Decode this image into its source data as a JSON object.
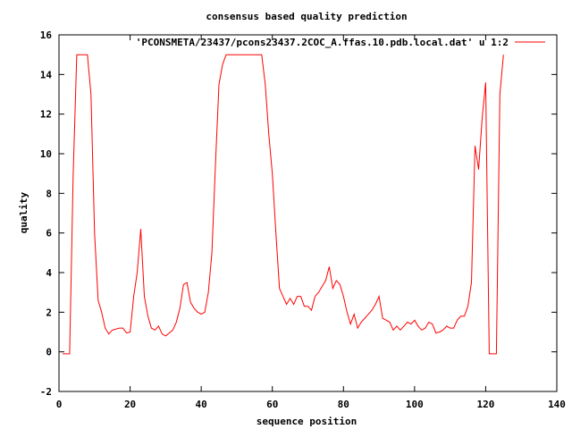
{
  "chart_data": {
    "type": "line",
    "title": "consensus based quality prediction",
    "xlabel": "sequence position",
    "ylabel": "quality",
    "xlim": [
      0,
      140
    ],
    "ylim": [
      -2,
      16
    ],
    "xticks": [
      0,
      20,
      40,
      60,
      80,
      100,
      120,
      140
    ],
    "yticks": [
      -2,
      0,
      2,
      4,
      6,
      8,
      10,
      12,
      14,
      16
    ],
    "grid": false,
    "legend": "top-right",
    "series": [
      {
        "name": "'PCONSMETA/23437/pcons23437.2COC_A.ffas.10.pdb.local.dat' u 1:2",
        "color": "#ff0000",
        "x": [
          1,
          2,
          3,
          4,
          5,
          6,
          7,
          8,
          9,
          10,
          11,
          12,
          13,
          14,
          15,
          16,
          17,
          18,
          19,
          20,
          21,
          22,
          23,
          24,
          25,
          26,
          27,
          28,
          29,
          30,
          31,
          32,
          33,
          34,
          35,
          36,
          37,
          38,
          39,
          40,
          41,
          42,
          43,
          44,
          45,
          46,
          47,
          48,
          49,
          50,
          51,
          52,
          53,
          54,
          55,
          56,
          57,
          58,
          59,
          60,
          61,
          62,
          63,
          64,
          65,
          66,
          67,
          68,
          69,
          70,
          71,
          72,
          73,
          74,
          75,
          76,
          77,
          78,
          79,
          80,
          81,
          82,
          83,
          84,
          85,
          86,
          87,
          88,
          89,
          90,
          91,
          92,
          93,
          94,
          95,
          96,
          97,
          98,
          99,
          100,
          101,
          102,
          103,
          104,
          105,
          106,
          107,
          108,
          109,
          110,
          111,
          112,
          113,
          114,
          115,
          116,
          117,
          118,
          119,
          120,
          121,
          122,
          123,
          124,
          125
        ],
        "y": [
          -0.1,
          -0.1,
          -0.1,
          9.0,
          15.0,
          15.0,
          15.0,
          15.0,
          13.0,
          6.0,
          2.6,
          2.0,
          1.2,
          0.9,
          1.1,
          1.15,
          1.2,
          1.2,
          0.95,
          1.0,
          2.8,
          4.0,
          6.2,
          2.8,
          1.8,
          1.2,
          1.1,
          1.3,
          0.9,
          0.8,
          0.95,
          1.1,
          1.5,
          2.2,
          3.4,
          3.5,
          2.5,
          2.2,
          2.0,
          1.9,
          2.0,
          3.0,
          5.0,
          9.5,
          13.5,
          14.5,
          15.0,
          15.0,
          15.0,
          15.0,
          15.0,
          15.0,
          15.0,
          15.0,
          15.0,
          15.0,
          15.0,
          13.5,
          11.0,
          9.0,
          6.0,
          3.2,
          2.8,
          2.4,
          2.7,
          2.4,
          2.8,
          2.8,
          2.3,
          2.3,
          2.1,
          2.8,
          3.0,
          3.3,
          3.6,
          4.3,
          3.2,
          3.6,
          3.4,
          2.8,
          2.0,
          1.4,
          1.9,
          1.2,
          1.5,
          1.7,
          1.9,
          2.1,
          2.4,
          2.8,
          1.7,
          1.6,
          1.5,
          1.1,
          1.3,
          1.1,
          1.3,
          1.5,
          1.4,
          1.6,
          1.3,
          1.1,
          1.2,
          1.5,
          1.4,
          0.95,
          1.0,
          1.1,
          1.3,
          1.2,
          1.2,
          1.6,
          1.8,
          1.8,
          2.3,
          3.5,
          10.4,
          9.2,
          11.8,
          13.6,
          -0.1,
          -0.1,
          -0.1,
          13.0,
          15.0
        ]
      }
    ]
  }
}
